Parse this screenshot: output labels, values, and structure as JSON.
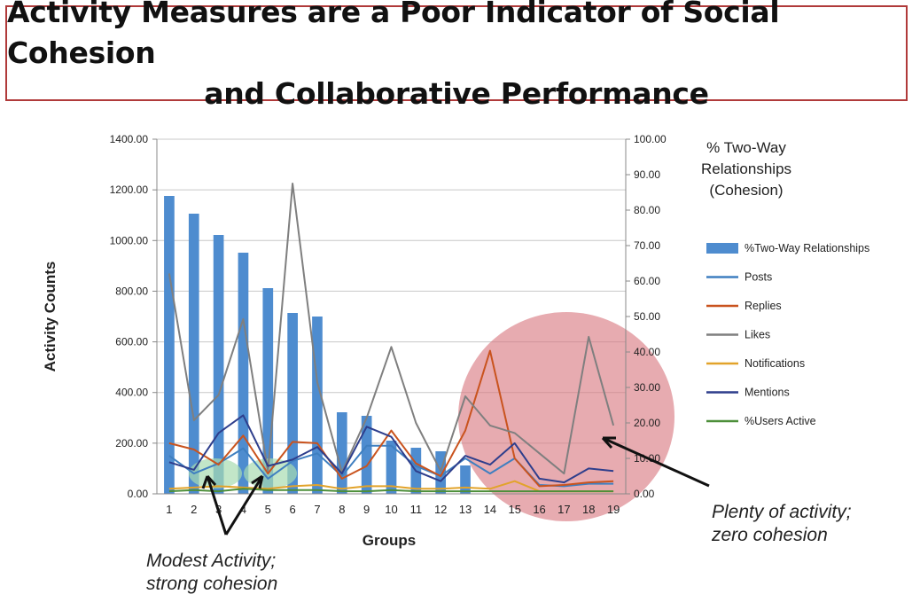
{
  "header": {
    "title_line1": "Activity Measures are a Poor Indicator of Social Cohesion",
    "title_line2": "and Collaborative Performance"
  },
  "chart_data": {
    "type": "bar",
    "title": "Activity Measures are a Poor Indicator of Social Cohesion and Collaborative Performance",
    "xlabel": "Groups",
    "ylabel": "Activity Counts",
    "y2label": [
      "% Two-Way",
      "Relationships",
      "(Cohesion)"
    ],
    "ylim": [
      0,
      1400
    ],
    "y2lim": [
      0,
      100
    ],
    "yticks": [
      "0.00",
      "200.00",
      "400.00",
      "600.00",
      "800.00",
      "1000.00",
      "1200.00",
      "1400.00"
    ],
    "y2ticks": [
      "0.00",
      "10.00",
      "20.00",
      "30.00",
      "40.00",
      "50.00",
      "60.00",
      "70.00",
      "80.00",
      "90.00",
      "100.00"
    ],
    "grid": true,
    "categories": [
      "1",
      "2",
      "3",
      "4",
      "5",
      "6",
      "7",
      "8",
      "9",
      "10",
      "11",
      "12",
      "13",
      "14",
      "15",
      "16",
      "17",
      "18",
      "19"
    ],
    "bar_series": {
      "name": "%Two-Way Relationships",
      "axis": "right",
      "color": "#4e8ccf",
      "values": [
        84,
        79,
        73,
        68,
        58,
        51,
        50,
        23,
        22,
        15,
        13,
        12,
        8,
        0,
        0,
        0,
        0,
        0,
        0
      ]
    },
    "series": [
      {
        "name": "Posts",
        "color": "#3f7fc0",
        "values": [
          150,
          80,
          120,
          180,
          60,
          130,
          160,
          70,
          190,
          190,
          110,
          70,
          140,
          80,
          140,
          35,
          30,
          40,
          40
        ]
      },
      {
        "name": "Replies",
        "color": "#c9531e",
        "values": [
          200,
          175,
          115,
          230,
          80,
          205,
          200,
          60,
          110,
          250,
          120,
          70,
          250,
          565,
          140,
          30,
          35,
          45,
          50
        ]
      },
      {
        "name": "Likes",
        "color": "#7f7f7f",
        "values": [
          870,
          290,
          390,
          690,
          90,
          1225,
          440,
          85,
          300,
          580,
          280,
          90,
          385,
          270,
          240,
          160,
          80,
          620,
          270
        ]
      },
      {
        "name": "Notifications",
        "color": "#e2a32a",
        "values": [
          20,
          25,
          30,
          25,
          20,
          30,
          35,
          20,
          30,
          30,
          20,
          20,
          25,
          20,
          50,
          10,
          10,
          10,
          10
        ]
      },
      {
        "name": "Mentions",
        "color": "#2e3e8c",
        "values": [
          125,
          95,
          240,
          310,
          110,
          135,
          185,
          80,
          265,
          225,
          90,
          50,
          150,
          115,
          200,
          60,
          45,
          100,
          90
        ]
      },
      {
        "name": "%Users Active",
        "color": "#4d8f3a",
        "values": [
          10,
          15,
          10,
          20,
          15,
          15,
          15,
          10,
          10,
          15,
          10,
          10,
          10,
          10,
          10,
          10,
          10,
          10,
          10
        ]
      }
    ],
    "legend_position": "right",
    "annotations": [
      {
        "id": "left",
        "lines": [
          "Modest Activity;",
          "strong cohesion"
        ]
      },
      {
        "id": "right",
        "lines": [
          "Plenty of activity;",
          "zero cohesion"
        ]
      }
    ]
  }
}
